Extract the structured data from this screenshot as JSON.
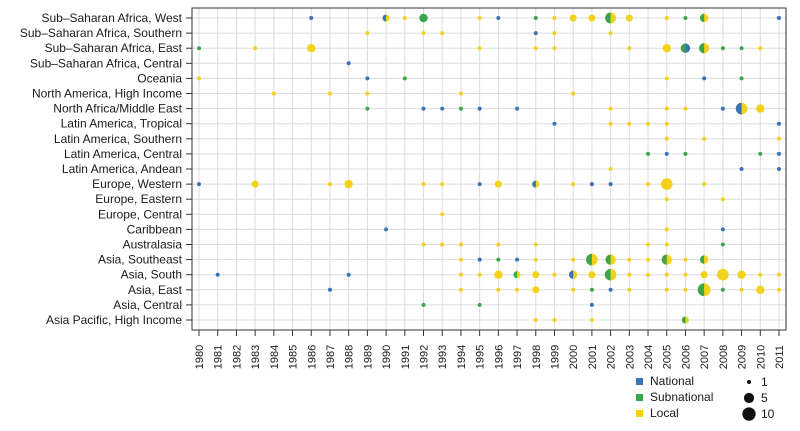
{
  "chart_data": {
    "type": "scatter",
    "title": "",
    "xlabel": "",
    "ylabel": "",
    "x_range": [
      1980,
      2011
    ],
    "regions": [
      "Sub–Saharan Africa, West",
      "Sub–Saharan Africa, Southern",
      "Sub–Saharan Africa, East",
      "Sub–Saharan Africa, Central",
      "Oceania",
      "North America, High Income",
      "North Africa/Middle East",
      "Latin America, Tropical",
      "Latin America, Southern",
      "Latin America, Central",
      "Latin America, Andean",
      "Europe, Western",
      "Europe, Eastern",
      "Europe, Central",
      "Caribbean",
      "Australasia",
      "Asia, Southeast",
      "Asia, South",
      "Asia, East",
      "Asia, Central",
      "Asia Pacific, High Income"
    ],
    "series_colors": {
      "National": "#3a73b5",
      "Subnational": "#3aa64a",
      "Local": "#f2d21b"
    },
    "legend": {
      "types": [
        "National",
        "Subnational",
        "Local"
      ],
      "sizes": [
        {
          "label": "1",
          "value": 1
        },
        {
          "label": "5",
          "value": 5
        },
        {
          "label": "10",
          "value": 10
        }
      ]
    },
    "points": [
      {
        "region": 0,
        "year": 1986,
        "n": 1,
        "type": "National"
      },
      {
        "region": 0,
        "year": 1990,
        "n": 2,
        "type": "Local",
        "mixed": "National"
      },
      {
        "region": 0,
        "year": 1991,
        "n": 1,
        "type": "Local"
      },
      {
        "region": 0,
        "year": 1992,
        "n": 3,
        "type": "Subnational"
      },
      {
        "region": 0,
        "year": 1995,
        "n": 1,
        "type": "Local"
      },
      {
        "region": 0,
        "year": 1996,
        "n": 1,
        "type": "National"
      },
      {
        "region": 0,
        "year": 1998,
        "n": 1,
        "type": "Subnational"
      },
      {
        "region": 0,
        "year": 1999,
        "n": 1,
        "type": "Local"
      },
      {
        "region": 0,
        "year": 2000,
        "n": 2,
        "type": "Local"
      },
      {
        "region": 0,
        "year": 2001,
        "n": 2,
        "type": "Local"
      },
      {
        "region": 0,
        "year": 2002,
        "n": 6,
        "type": "Local",
        "mixed": "Subnational"
      },
      {
        "region": 0,
        "year": 2003,
        "n": 2,
        "type": "Local"
      },
      {
        "region": 0,
        "year": 2005,
        "n": 1,
        "type": "Local"
      },
      {
        "region": 0,
        "year": 2006,
        "n": 1,
        "type": "Subnational"
      },
      {
        "region": 0,
        "year": 2007,
        "n": 3,
        "type": "Local",
        "mixed": "Subnational"
      },
      {
        "region": 0,
        "year": 2011,
        "n": 1,
        "type": "National"
      },
      {
        "region": 1,
        "year": 1989,
        "n": 1,
        "type": "Local"
      },
      {
        "region": 1,
        "year": 1992,
        "n": 1,
        "type": "Local"
      },
      {
        "region": 1,
        "year": 1993,
        "n": 1,
        "type": "Local"
      },
      {
        "region": 1,
        "year": 1998,
        "n": 1,
        "type": "National"
      },
      {
        "region": 1,
        "year": 1999,
        "n": 1,
        "type": "Local"
      },
      {
        "region": 1,
        "year": 2002,
        "n": 1,
        "type": "Local"
      },
      {
        "region": 2,
        "year": 1980,
        "n": 1,
        "type": "Subnational"
      },
      {
        "region": 2,
        "year": 1983,
        "n": 1,
        "type": "Local"
      },
      {
        "region": 2,
        "year": 1986,
        "n": 3,
        "type": "Local"
      },
      {
        "region": 2,
        "year": 1995,
        "n": 1,
        "type": "Local"
      },
      {
        "region": 2,
        "year": 1998,
        "n": 1,
        "type": "Local"
      },
      {
        "region": 2,
        "year": 1999,
        "n": 1,
        "type": "Local"
      },
      {
        "region": 2,
        "year": 2003,
        "n": 1,
        "type": "Local"
      },
      {
        "region": 2,
        "year": 2005,
        "n": 3,
        "type": "Local"
      },
      {
        "region": 2,
        "year": 2006,
        "n": 4,
        "type": "National",
        "mixed": "Subnational"
      },
      {
        "region": 2,
        "year": 2007,
        "n": 5,
        "type": "Local",
        "mixed": "Subnational"
      },
      {
        "region": 2,
        "year": 2008,
        "n": 1,
        "type": "Subnational"
      },
      {
        "region": 2,
        "year": 2009,
        "n": 1,
        "type": "Subnational"
      },
      {
        "region": 2,
        "year": 2010,
        "n": 1,
        "type": "Local"
      },
      {
        "region": 3,
        "year": 1988,
        "n": 1,
        "type": "National"
      },
      {
        "region": 4,
        "year": 1980,
        "n": 1,
        "type": "Local"
      },
      {
        "region": 4,
        "year": 1989,
        "n": 1,
        "type": "National"
      },
      {
        "region": 4,
        "year": 1991,
        "n": 1,
        "type": "Subnational"
      },
      {
        "region": 4,
        "year": 2005,
        "n": 1,
        "type": "Local"
      },
      {
        "region": 4,
        "year": 2007,
        "n": 1,
        "type": "National"
      },
      {
        "region": 4,
        "year": 2009,
        "n": 1,
        "type": "Subnational"
      },
      {
        "region": 5,
        "year": 1984,
        "n": 1,
        "type": "Local"
      },
      {
        "region": 5,
        "year": 1987,
        "n": 1,
        "type": "Local"
      },
      {
        "region": 5,
        "year": 1989,
        "n": 1,
        "type": "Local"
      },
      {
        "region": 5,
        "year": 1994,
        "n": 1,
        "type": "Local"
      },
      {
        "region": 5,
        "year": 2000,
        "n": 1,
        "type": "Local"
      },
      {
        "region": 6,
        "year": 1989,
        "n": 1,
        "type": "Subnational"
      },
      {
        "region": 6,
        "year": 1992,
        "n": 1,
        "type": "National"
      },
      {
        "region": 6,
        "year": 1993,
        "n": 1,
        "type": "National"
      },
      {
        "region": 6,
        "year": 1994,
        "n": 1,
        "type": "Subnational"
      },
      {
        "region": 6,
        "year": 1995,
        "n": 1,
        "type": "National"
      },
      {
        "region": 6,
        "year": 1997,
        "n": 1,
        "type": "National"
      },
      {
        "region": 6,
        "year": 2002,
        "n": 1,
        "type": "Local"
      },
      {
        "region": 6,
        "year": 2005,
        "n": 1,
        "type": "Local"
      },
      {
        "region": 6,
        "year": 2006,
        "n": 1,
        "type": "Local"
      },
      {
        "region": 6,
        "year": 2008,
        "n": 1,
        "type": "National"
      },
      {
        "region": 6,
        "year": 2009,
        "n": 7,
        "type": "Local",
        "mixed": "National"
      },
      {
        "region": 6,
        "year": 2010,
        "n": 3,
        "type": "Local"
      },
      {
        "region": 7,
        "year": 1999,
        "n": 1,
        "type": "National"
      },
      {
        "region": 7,
        "year": 2002,
        "n": 1,
        "type": "Local"
      },
      {
        "region": 7,
        "year": 2003,
        "n": 1,
        "type": "Local"
      },
      {
        "region": 7,
        "year": 2004,
        "n": 1,
        "type": "Local"
      },
      {
        "region": 7,
        "year": 2005,
        "n": 1,
        "type": "Local"
      },
      {
        "region": 7,
        "year": 2011,
        "n": 1,
        "type": "National"
      },
      {
        "region": 8,
        "year": 2005,
        "n": 1,
        "type": "Local"
      },
      {
        "region": 8,
        "year": 2007,
        "n": 1,
        "type": "Local"
      },
      {
        "region": 8,
        "year": 2011,
        "n": 1,
        "type": "Local"
      },
      {
        "region": 9,
        "year": 2004,
        "n": 1,
        "type": "Subnational"
      },
      {
        "region": 9,
        "year": 2005,
        "n": 1,
        "type": "National"
      },
      {
        "region": 9,
        "year": 2006,
        "n": 1,
        "type": "Subnational"
      },
      {
        "region": 9,
        "year": 2010,
        "n": 1,
        "type": "Subnational"
      },
      {
        "region": 9,
        "year": 2011,
        "n": 1,
        "type": "National"
      },
      {
        "region": 10,
        "year": 2002,
        "n": 1,
        "type": "Local"
      },
      {
        "region": 10,
        "year": 2009,
        "n": 1,
        "type": "National"
      },
      {
        "region": 10,
        "year": 2011,
        "n": 1,
        "type": "National"
      },
      {
        "region": 11,
        "year": 1980,
        "n": 1,
        "type": "National"
      },
      {
        "region": 11,
        "year": 1983,
        "n": 2,
        "type": "Local"
      },
      {
        "region": 11,
        "year": 1987,
        "n": 1,
        "type": "Local"
      },
      {
        "region": 11,
        "year": 1988,
        "n": 3,
        "type": "Local"
      },
      {
        "region": 11,
        "year": 1992,
        "n": 1,
        "type": "Local"
      },
      {
        "region": 11,
        "year": 1993,
        "n": 1,
        "type": "Local"
      },
      {
        "region": 11,
        "year": 1995,
        "n": 1,
        "type": "National"
      },
      {
        "region": 11,
        "year": 1996,
        "n": 2,
        "type": "Local"
      },
      {
        "region": 11,
        "year": 1998,
        "n": 2,
        "type": "Local",
        "mixed": "National"
      },
      {
        "region": 11,
        "year": 2000,
        "n": 1,
        "type": "Local"
      },
      {
        "region": 11,
        "year": 2001,
        "n": 1,
        "type": "National"
      },
      {
        "region": 11,
        "year": 2002,
        "n": 1,
        "type": "National"
      },
      {
        "region": 11,
        "year": 2004,
        "n": 1,
        "type": "Local"
      },
      {
        "region": 11,
        "year": 2005,
        "n": 7,
        "type": "Local"
      },
      {
        "region": 11,
        "year": 2007,
        "n": 1,
        "type": "Local"
      },
      {
        "region": 12,
        "year": 2005,
        "n": 1,
        "type": "Local"
      },
      {
        "region": 12,
        "year": 2008,
        "n": 1,
        "type": "Local"
      },
      {
        "region": 13,
        "year": 1993,
        "n": 1,
        "type": "Local"
      },
      {
        "region": 14,
        "year": 1990,
        "n": 1,
        "type": "National"
      },
      {
        "region": 14,
        "year": 2005,
        "n": 1,
        "type": "Local"
      },
      {
        "region": 14,
        "year": 2008,
        "n": 1,
        "type": "National"
      },
      {
        "region": 15,
        "year": 1992,
        "n": 1,
        "type": "Local"
      },
      {
        "region": 15,
        "year": 1993,
        "n": 1,
        "type": "Local"
      },
      {
        "region": 15,
        "year": 1994,
        "n": 1,
        "type": "Local"
      },
      {
        "region": 15,
        "year": 1996,
        "n": 1,
        "type": "Local"
      },
      {
        "region": 15,
        "year": 1998,
        "n": 1,
        "type": "Local"
      },
      {
        "region": 15,
        "year": 2004,
        "n": 1,
        "type": "Local"
      },
      {
        "region": 15,
        "year": 2005,
        "n": 1,
        "type": "Local"
      },
      {
        "region": 15,
        "year": 2008,
        "n": 1,
        "type": "Subnational"
      },
      {
        "region": 16,
        "year": 1994,
        "n": 1,
        "type": "Local"
      },
      {
        "region": 16,
        "year": 1995,
        "n": 1,
        "type": "National"
      },
      {
        "region": 16,
        "year": 1996,
        "n": 1,
        "type": "Subnational"
      },
      {
        "region": 16,
        "year": 1997,
        "n": 1,
        "type": "National"
      },
      {
        "region": 16,
        "year": 1998,
        "n": 1,
        "type": "Local"
      },
      {
        "region": 16,
        "year": 2000,
        "n": 1,
        "type": "Local"
      },
      {
        "region": 16,
        "year": 2001,
        "n": 7,
        "type": "Local",
        "mixed": "Subnational"
      },
      {
        "region": 16,
        "year": 2002,
        "n": 5,
        "type": "Local",
        "mixed": "Subnational"
      },
      {
        "region": 16,
        "year": 2003,
        "n": 1,
        "type": "Local"
      },
      {
        "region": 16,
        "year": 2004,
        "n": 1,
        "type": "Local"
      },
      {
        "region": 16,
        "year": 2005,
        "n": 5,
        "type": "Local",
        "mixed": "Subnational"
      },
      {
        "region": 16,
        "year": 2006,
        "n": 1,
        "type": "Local"
      },
      {
        "region": 16,
        "year": 2007,
        "n": 3,
        "type": "Local",
        "mixed": "Subnational"
      },
      {
        "region": 17,
        "year": 1981,
        "n": 1,
        "type": "National"
      },
      {
        "region": 17,
        "year": 1988,
        "n": 1,
        "type": "National"
      },
      {
        "region": 17,
        "year": 1994,
        "n": 1,
        "type": "Local"
      },
      {
        "region": 17,
        "year": 1995,
        "n": 1,
        "type": "Local"
      },
      {
        "region": 17,
        "year": 1996,
        "n": 3,
        "type": "Local"
      },
      {
        "region": 17,
        "year": 1997,
        "n": 2,
        "type": "Local",
        "mixed": "Subnational"
      },
      {
        "region": 17,
        "year": 1998,
        "n": 2,
        "type": "Local"
      },
      {
        "region": 17,
        "year": 1999,
        "n": 1,
        "type": "Local"
      },
      {
        "region": 17,
        "year": 2000,
        "n": 3,
        "type": "Local",
        "mixed": "National"
      },
      {
        "region": 17,
        "year": 2001,
        "n": 2,
        "type": "Local"
      },
      {
        "region": 17,
        "year": 2002,
        "n": 7,
        "type": "Local",
        "mixed": "Subnational"
      },
      {
        "region": 17,
        "year": 2003,
        "n": 1,
        "type": "Local"
      },
      {
        "region": 17,
        "year": 2004,
        "n": 1,
        "type": "Local"
      },
      {
        "region": 17,
        "year": 2005,
        "n": 1,
        "type": "Local"
      },
      {
        "region": 17,
        "year": 2006,
        "n": 1,
        "type": "Local"
      },
      {
        "region": 17,
        "year": 2007,
        "n": 2,
        "type": "Local"
      },
      {
        "region": 17,
        "year": 2008,
        "n": 7,
        "type": "Local"
      },
      {
        "region": 17,
        "year": 2009,
        "n": 3,
        "type": "Local"
      },
      {
        "region": 17,
        "year": 2010,
        "n": 1,
        "type": "Local"
      },
      {
        "region": 17,
        "year": 2011,
        "n": 1,
        "type": "Local"
      },
      {
        "region": 18,
        "year": 1987,
        "n": 1,
        "type": "National"
      },
      {
        "region": 18,
        "year": 1994,
        "n": 1,
        "type": "Local"
      },
      {
        "region": 18,
        "year": 1996,
        "n": 1,
        "type": "Local"
      },
      {
        "region": 18,
        "year": 1997,
        "n": 1,
        "type": "Local"
      },
      {
        "region": 18,
        "year": 1998,
        "n": 2,
        "type": "Local"
      },
      {
        "region": 18,
        "year": 2000,
        "n": 1,
        "type": "Local"
      },
      {
        "region": 18,
        "year": 2001,
        "n": 1,
        "type": "Subnational"
      },
      {
        "region": 18,
        "year": 2002,
        "n": 1,
        "type": "National"
      },
      {
        "region": 18,
        "year": 2003,
        "n": 1,
        "type": "Local"
      },
      {
        "region": 18,
        "year": 2005,
        "n": 1,
        "type": "Local"
      },
      {
        "region": 18,
        "year": 2006,
        "n": 1,
        "type": "Local"
      },
      {
        "region": 18,
        "year": 2007,
        "n": 9,
        "type": "Local",
        "mixed": "Subnational"
      },
      {
        "region": 18,
        "year": 2008,
        "n": 1,
        "type": "Subnational"
      },
      {
        "region": 18,
        "year": 2009,
        "n": 1,
        "type": "Local"
      },
      {
        "region": 18,
        "year": 2010,
        "n": 3,
        "type": "Local"
      },
      {
        "region": 18,
        "year": 2011,
        "n": 1,
        "type": "Local"
      },
      {
        "region": 19,
        "year": 1992,
        "n": 1,
        "type": "Subnational"
      },
      {
        "region": 19,
        "year": 1995,
        "n": 1,
        "type": "Subnational"
      },
      {
        "region": 19,
        "year": 2001,
        "n": 1,
        "type": "National"
      },
      {
        "region": 20,
        "year": 1998,
        "n": 1,
        "type": "Local"
      },
      {
        "region": 20,
        "year": 1999,
        "n": 1,
        "type": "Local"
      },
      {
        "region": 20,
        "year": 2001,
        "n": 1,
        "type": "Local"
      },
      {
        "region": 20,
        "year": 2006,
        "n": 2,
        "type": "Local",
        "mixed": "Subnational"
      }
    ]
  }
}
